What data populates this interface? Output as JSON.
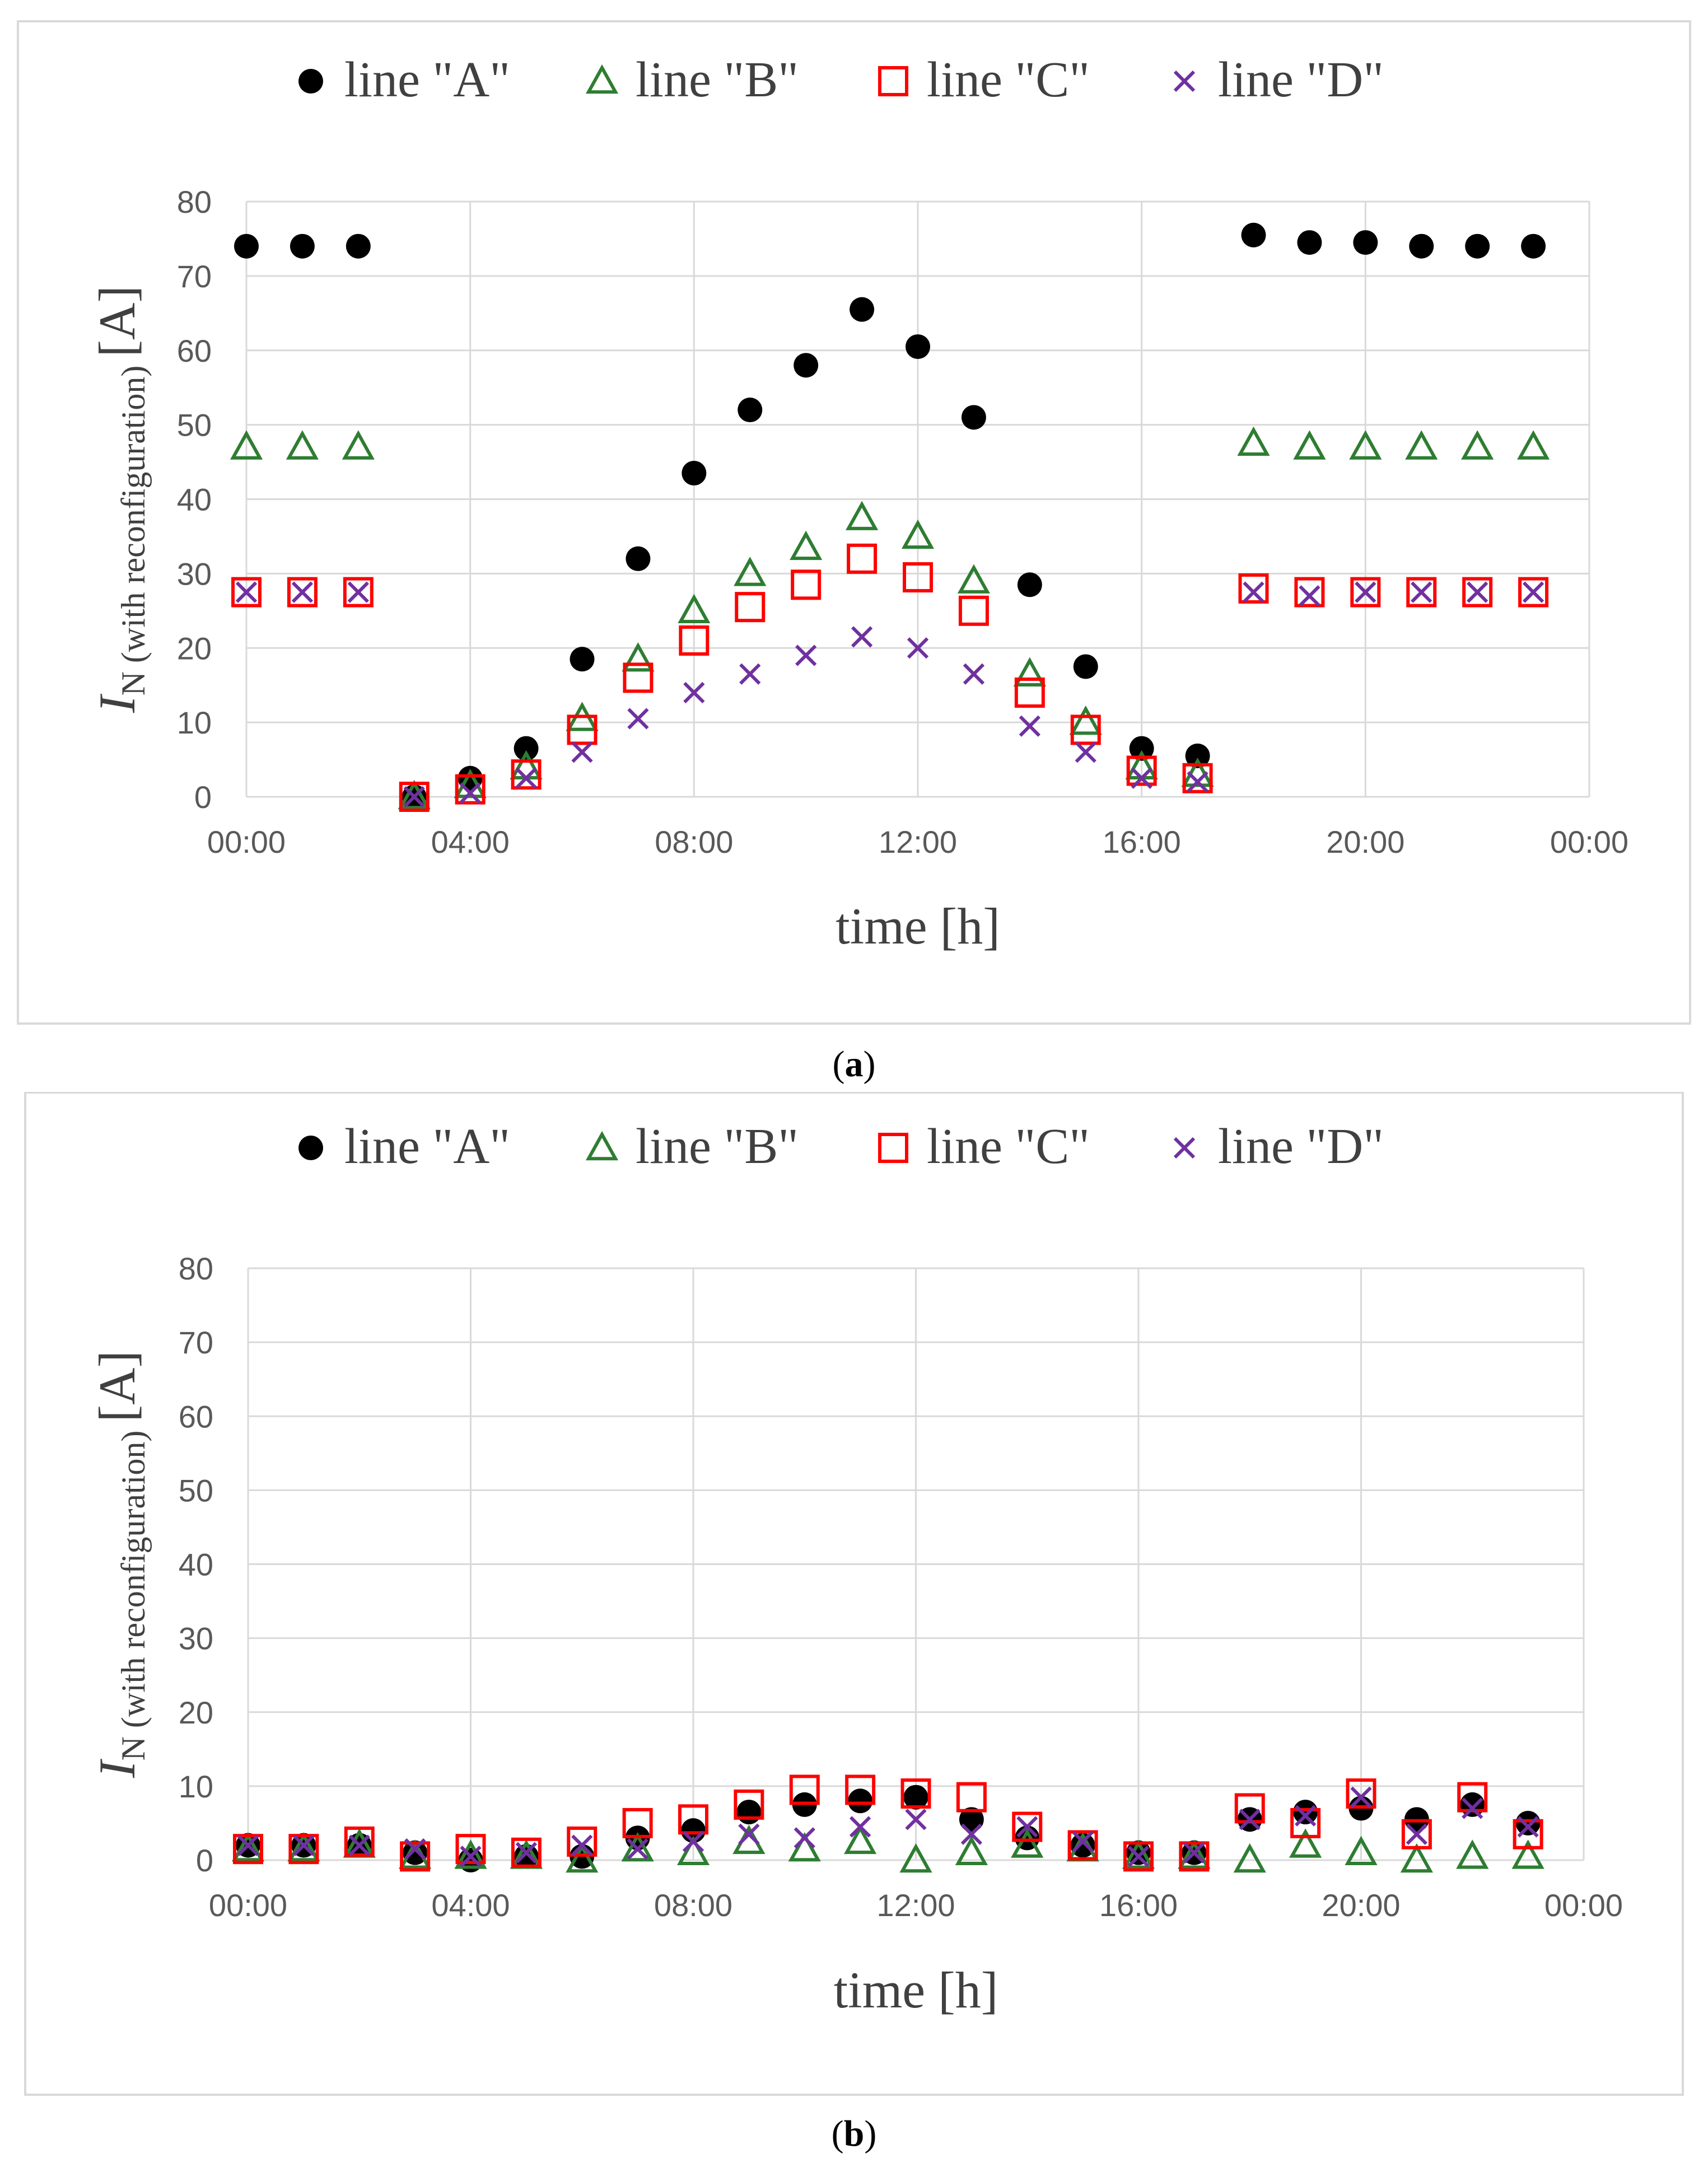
{
  "colors": {
    "series_A": "#000000",
    "series_B": "#2e7d32",
    "series_C": "#ff0000",
    "series_D": "#7030a0",
    "grid": "#d9d9d9",
    "text": "#404040"
  },
  "chart_data": [
    {
      "id": "a",
      "type": "scatter",
      "caption_letter": "a",
      "caption_open": "(",
      "caption_close": ")",
      "ylabel_main": "I",
      "ylabel_sub": "N (with reconfiguration)",
      "ylabel_unit": "[A]",
      "xlabel": "time [h]",
      "ylim": [
        0,
        80
      ],
      "yticks": [
        "0",
        "10",
        "20",
        "30",
        "40",
        "50",
        "60",
        "70",
        "80"
      ],
      "xlim": [
        0,
        24
      ],
      "xticks": [
        "00:00",
        "04:00",
        "08:00",
        "12:00",
        "16:00",
        "20:00",
        "00:00"
      ],
      "legend_position": "top",
      "series": [
        {
          "name": "line \"A\"",
          "marker": "circle",
          "x": [
            0,
            1,
            2,
            3,
            4,
            5,
            6,
            7,
            8,
            9,
            10,
            11,
            12,
            13,
            14,
            15,
            16,
            17,
            18,
            19,
            20,
            21,
            22,
            23
          ],
          "values": [
            74,
            74,
            74,
            0,
            2.5,
            6.5,
            18.5,
            32,
            43.5,
            52,
            58,
            65.5,
            60.5,
            51,
            28.5,
            17.5,
            6.5,
            5.5,
            75.5,
            74.5,
            74.5,
            74,
            74,
            74
          ]
        },
        {
          "name": "line \"B\"",
          "marker": "triangle",
          "x": [
            0,
            1,
            2,
            3,
            4,
            5,
            6,
            7,
            8,
            9,
            10,
            11,
            12,
            13,
            14,
            15,
            16,
            17,
            18,
            19,
            20,
            21,
            22,
            23
          ],
          "values": [
            47,
            47,
            47,
            0,
            1.5,
            4,
            10.5,
            18.5,
            25,
            30,
            33.5,
            37.5,
            35,
            29,
            16.5,
            10,
            4,
            3,
            47.5,
            47,
            47,
            47,
            47,
            47
          ]
        },
        {
          "name": "line \"C\"",
          "marker": "square",
          "x": [
            0,
            1,
            2,
            3,
            4,
            5,
            6,
            7,
            8,
            9,
            10,
            11,
            12,
            13,
            14,
            15,
            16,
            17,
            18,
            19,
            20,
            21,
            22,
            23
          ],
          "values": [
            27.5,
            27.5,
            27.5,
            0,
            1,
            3,
            9,
            16,
            21,
            25.5,
            28.5,
            32,
            29.5,
            25,
            14,
            9,
            3.5,
            2.5,
            28,
            27.5,
            27.5,
            27.5,
            27.5,
            27.5
          ]
        },
        {
          "name": "line \"D\"",
          "marker": "x",
          "x": [
            0,
            1,
            2,
            3,
            4,
            5,
            6,
            7,
            8,
            9,
            10,
            11,
            12,
            13,
            14,
            15,
            16,
            17,
            18,
            19,
            20,
            21,
            22,
            23
          ],
          "values": [
            27.5,
            27.5,
            27.5,
            0,
            0.5,
            2.5,
            6,
            10.5,
            14,
            16.5,
            19,
            21.5,
            20,
            16.5,
            9.5,
            6,
            2.5,
            2,
            27.5,
            27,
            27.5,
            27.5,
            27.5,
            27.5
          ]
        }
      ]
    },
    {
      "id": "b",
      "type": "scatter",
      "caption_letter": "b",
      "caption_open": "(",
      "caption_close": ")",
      "ylabel_main": "I",
      "ylabel_sub": "N (with reconfiguration)",
      "ylabel_unit": "[A]",
      "xlabel": "time [h]",
      "ylim": [
        0,
        80
      ],
      "yticks": [
        "0",
        "10",
        "20",
        "30",
        "40",
        "50",
        "60",
        "70",
        "80"
      ],
      "xlim": [
        0,
        24
      ],
      "xticks": [
        "00:00",
        "04:00",
        "08:00",
        "12:00",
        "16:00",
        "20:00",
        "00:00"
      ],
      "legend_position": "top",
      "series": [
        {
          "name": "line \"A\"",
          "marker": "circle",
          "x": [
            0,
            1,
            2,
            3,
            4,
            5,
            6,
            7,
            8,
            9,
            10,
            11,
            12,
            13,
            14,
            15,
            16,
            17,
            18,
            19,
            20,
            21,
            22,
            23
          ],
          "values": [
            2,
            2,
            2,
            1,
            0,
            0.5,
            0.5,
            3,
            4,
            6.5,
            7.5,
            8,
            8.5,
            5.5,
            3,
            2,
            1,
            1,
            5.5,
            6.5,
            7,
            5.5,
            7.5,
            5
          ]
        },
        {
          "name": "line \"B\"",
          "marker": "triangle",
          "x": [
            0,
            1,
            2,
            3,
            4,
            5,
            6,
            7,
            8,
            9,
            10,
            11,
            12,
            13,
            14,
            15,
            16,
            17,
            18,
            19,
            20,
            21,
            22,
            23
          ],
          "values": [
            1.5,
            1.5,
            2,
            0.5,
            0.5,
            0.5,
            0,
            1.5,
            1,
            2.5,
            1.5,
            2.5,
            0,
            1,
            2,
            1.5,
            0.5,
            0.5,
            0,
            2,
            1,
            0,
            0.5,
            0.5
          ]
        },
        {
          "name": "line \"C\"",
          "marker": "square",
          "x": [
            0,
            1,
            2,
            3,
            4,
            5,
            6,
            7,
            8,
            9,
            10,
            11,
            12,
            13,
            14,
            15,
            16,
            17,
            18,
            19,
            20,
            21,
            22,
            23
          ],
          "values": [
            1.5,
            1.5,
            2.5,
            0.5,
            1.5,
            1,
            2.5,
            5,
            5.5,
            7.5,
            9.5,
            9.5,
            9,
            8.5,
            4.5,
            2,
            0.5,
            0.5,
            7,
            5,
            9,
            3.5,
            8.5,
            3.5
          ]
        },
        {
          "name": "line \"D\"",
          "marker": "x",
          "x": [
            0,
            1,
            2,
            3,
            4,
            5,
            6,
            7,
            8,
            9,
            10,
            11,
            12,
            13,
            14,
            15,
            16,
            17,
            18,
            19,
            20,
            21,
            22,
            23
          ],
          "values": [
            2,
            2,
            2,
            1.5,
            0.5,
            1,
            2,
            1.5,
            2.5,
            3.5,
            3,
            4.5,
            5.5,
            3.5,
            4.5,
            2.5,
            0.5,
            1,
            5.5,
            6,
            8.5,
            3.5,
            7,
            4.5
          ]
        }
      ]
    }
  ]
}
